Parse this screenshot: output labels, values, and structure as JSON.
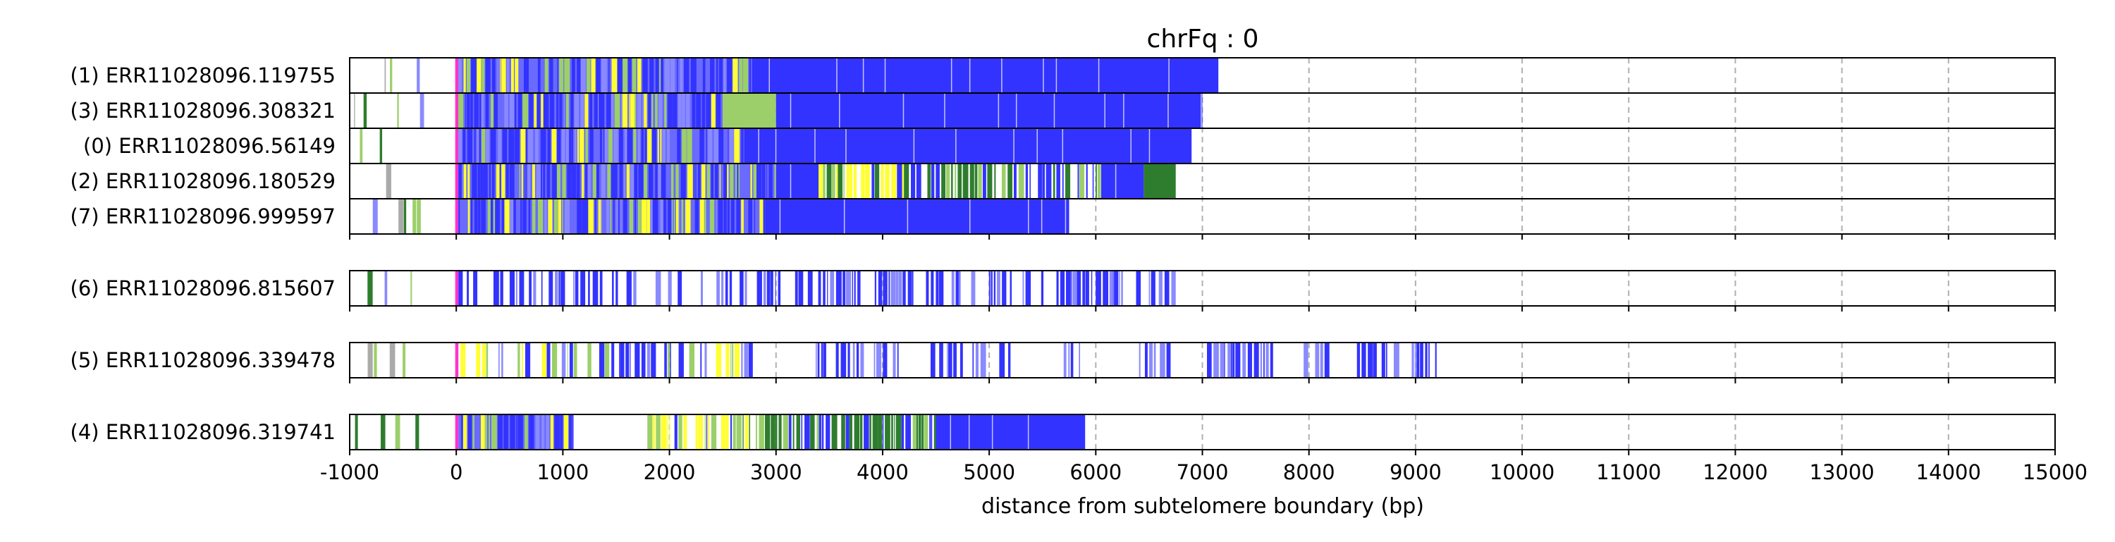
{
  "title": "chrFq : 0",
  "chart_data": {
    "type": "bar",
    "title": "chrFq : 0",
    "xlabel": "distance from subtelomere boundary (bp)",
    "ylabel": "",
    "xlim": [
      -1000,
      15000
    ],
    "xticks": [
      -1000,
      0,
      1000,
      2000,
      3000,
      4000,
      5000,
      6000,
      7000,
      8000,
      9000,
      10000,
      11000,
      12000,
      13000,
      14000,
      15000
    ],
    "x_grid": "vertical dashed at major ticks",
    "colors": {
      "blue": "#3333ff",
      "light_blue": "#8a8aff",
      "yellow": "#ffff33",
      "green": "#2e7d2e",
      "light_green": "#9ccf6a",
      "magenta": "#ff33cc",
      "frame": "#000000"
    },
    "groups": [
      {
        "reads": [
          {
            "label": "(1) ERR11028096.119755",
            "read_end": 7150
          },
          {
            "label": "(3) ERR11028096.308321",
            "read_end": 7000
          },
          {
            "label": "(0) ERR11028096.56149",
            "read_end": 6900
          },
          {
            "label": "(2) ERR11028096.180529",
            "read_end": 6750
          },
          {
            "label": "(7) ERR11028096.999597",
            "read_end": 5750
          }
        ]
      },
      {
        "reads": [
          {
            "label": "(6) ERR11028096.815607",
            "read_end": 6750
          }
        ]
      },
      {
        "reads": [
          {
            "label": "(5) ERR11028096.339478",
            "read_end": 9200
          }
        ]
      },
      {
        "reads": [
          {
            "label": "(4) ERR11028096.319741",
            "read_end": 5900
          }
        ]
      }
    ],
    "read_segments": {
      "(1) ERR11028096.119755": [
        [
          -1000,
          -300,
          "sparse"
        ],
        [
          -10,
          20,
          "magenta"
        ],
        [
          20,
          2800,
          "mixed"
        ],
        [
          2800,
          7150,
          "blue"
        ]
      ],
      "(3) ERR11028096.308321": [
        [
          -1000,
          -300,
          "sparse"
        ],
        [
          -10,
          20,
          "magenta"
        ],
        [
          20,
          2900,
          "mixed"
        ],
        [
          2500,
          3000,
          "light_green"
        ],
        [
          3000,
          7000,
          "blue"
        ]
      ],
      "(0) ERR11028096.56149": [
        [
          -1000,
          -300,
          "sparse"
        ],
        [
          -10,
          20,
          "magenta"
        ],
        [
          20,
          2700,
          "mixed"
        ],
        [
          2700,
          6900,
          "blue"
        ]
      ],
      "(2) ERR11028096.180529": [
        [
          -1000,
          -300,
          "sparse"
        ],
        [
          -10,
          20,
          "magenta"
        ],
        [
          20,
          3000,
          "mixed"
        ],
        [
          3000,
          3400,
          "blue"
        ],
        [
          3400,
          4200,
          "yellow_green"
        ],
        [
          4200,
          5600,
          "blue_green"
        ],
        [
          5600,
          6050,
          "green_blue"
        ],
        [
          6050,
          6450,
          "blue"
        ],
        [
          6450,
          6750,
          "green"
        ]
      ],
      "(7) ERR11028096.999597": [
        [
          -1000,
          -300,
          "sparse"
        ],
        [
          -10,
          20,
          "magenta"
        ],
        [
          20,
          2900,
          "mixed"
        ],
        [
          2900,
          5750,
          "blue"
        ]
      ],
      "(6) ERR11028096.815607": [
        [
          -1000,
          -300,
          "sparse"
        ],
        [
          -10,
          20,
          "magenta"
        ],
        [
          20,
          6750,
          "blue_sparse"
        ]
      ],
      "(5) ERR11028096.339478": [
        [
          -1000,
          -300,
          "sparse"
        ],
        [
          -10,
          20,
          "magenta"
        ],
        [
          20,
          2800,
          "mixed_sparse"
        ],
        [
          3300,
          4150,
          "blue_sparse"
        ],
        [
          4450,
          5200,
          "blue_sparse"
        ],
        [
          5500,
          5850,
          "blue_sparse"
        ],
        [
          6250,
          6750,
          "blue_sparse"
        ],
        [
          7000,
          7700,
          "blue_sparse"
        ],
        [
          7950,
          8200,
          "blue_sparse"
        ],
        [
          8450,
          9200,
          "blue_sparse"
        ]
      ],
      "(4) ERR11028096.319741": [
        [
          -1000,
          -300,
          "sparse"
        ],
        [
          -10,
          20,
          "magenta"
        ],
        [
          20,
          1100,
          "mixed"
        ],
        [
          1750,
          3000,
          "yellow_green"
        ],
        [
          3000,
          4500,
          "green_blue"
        ],
        [
          4500,
          5900,
          "blue"
        ]
      ]
    }
  }
}
